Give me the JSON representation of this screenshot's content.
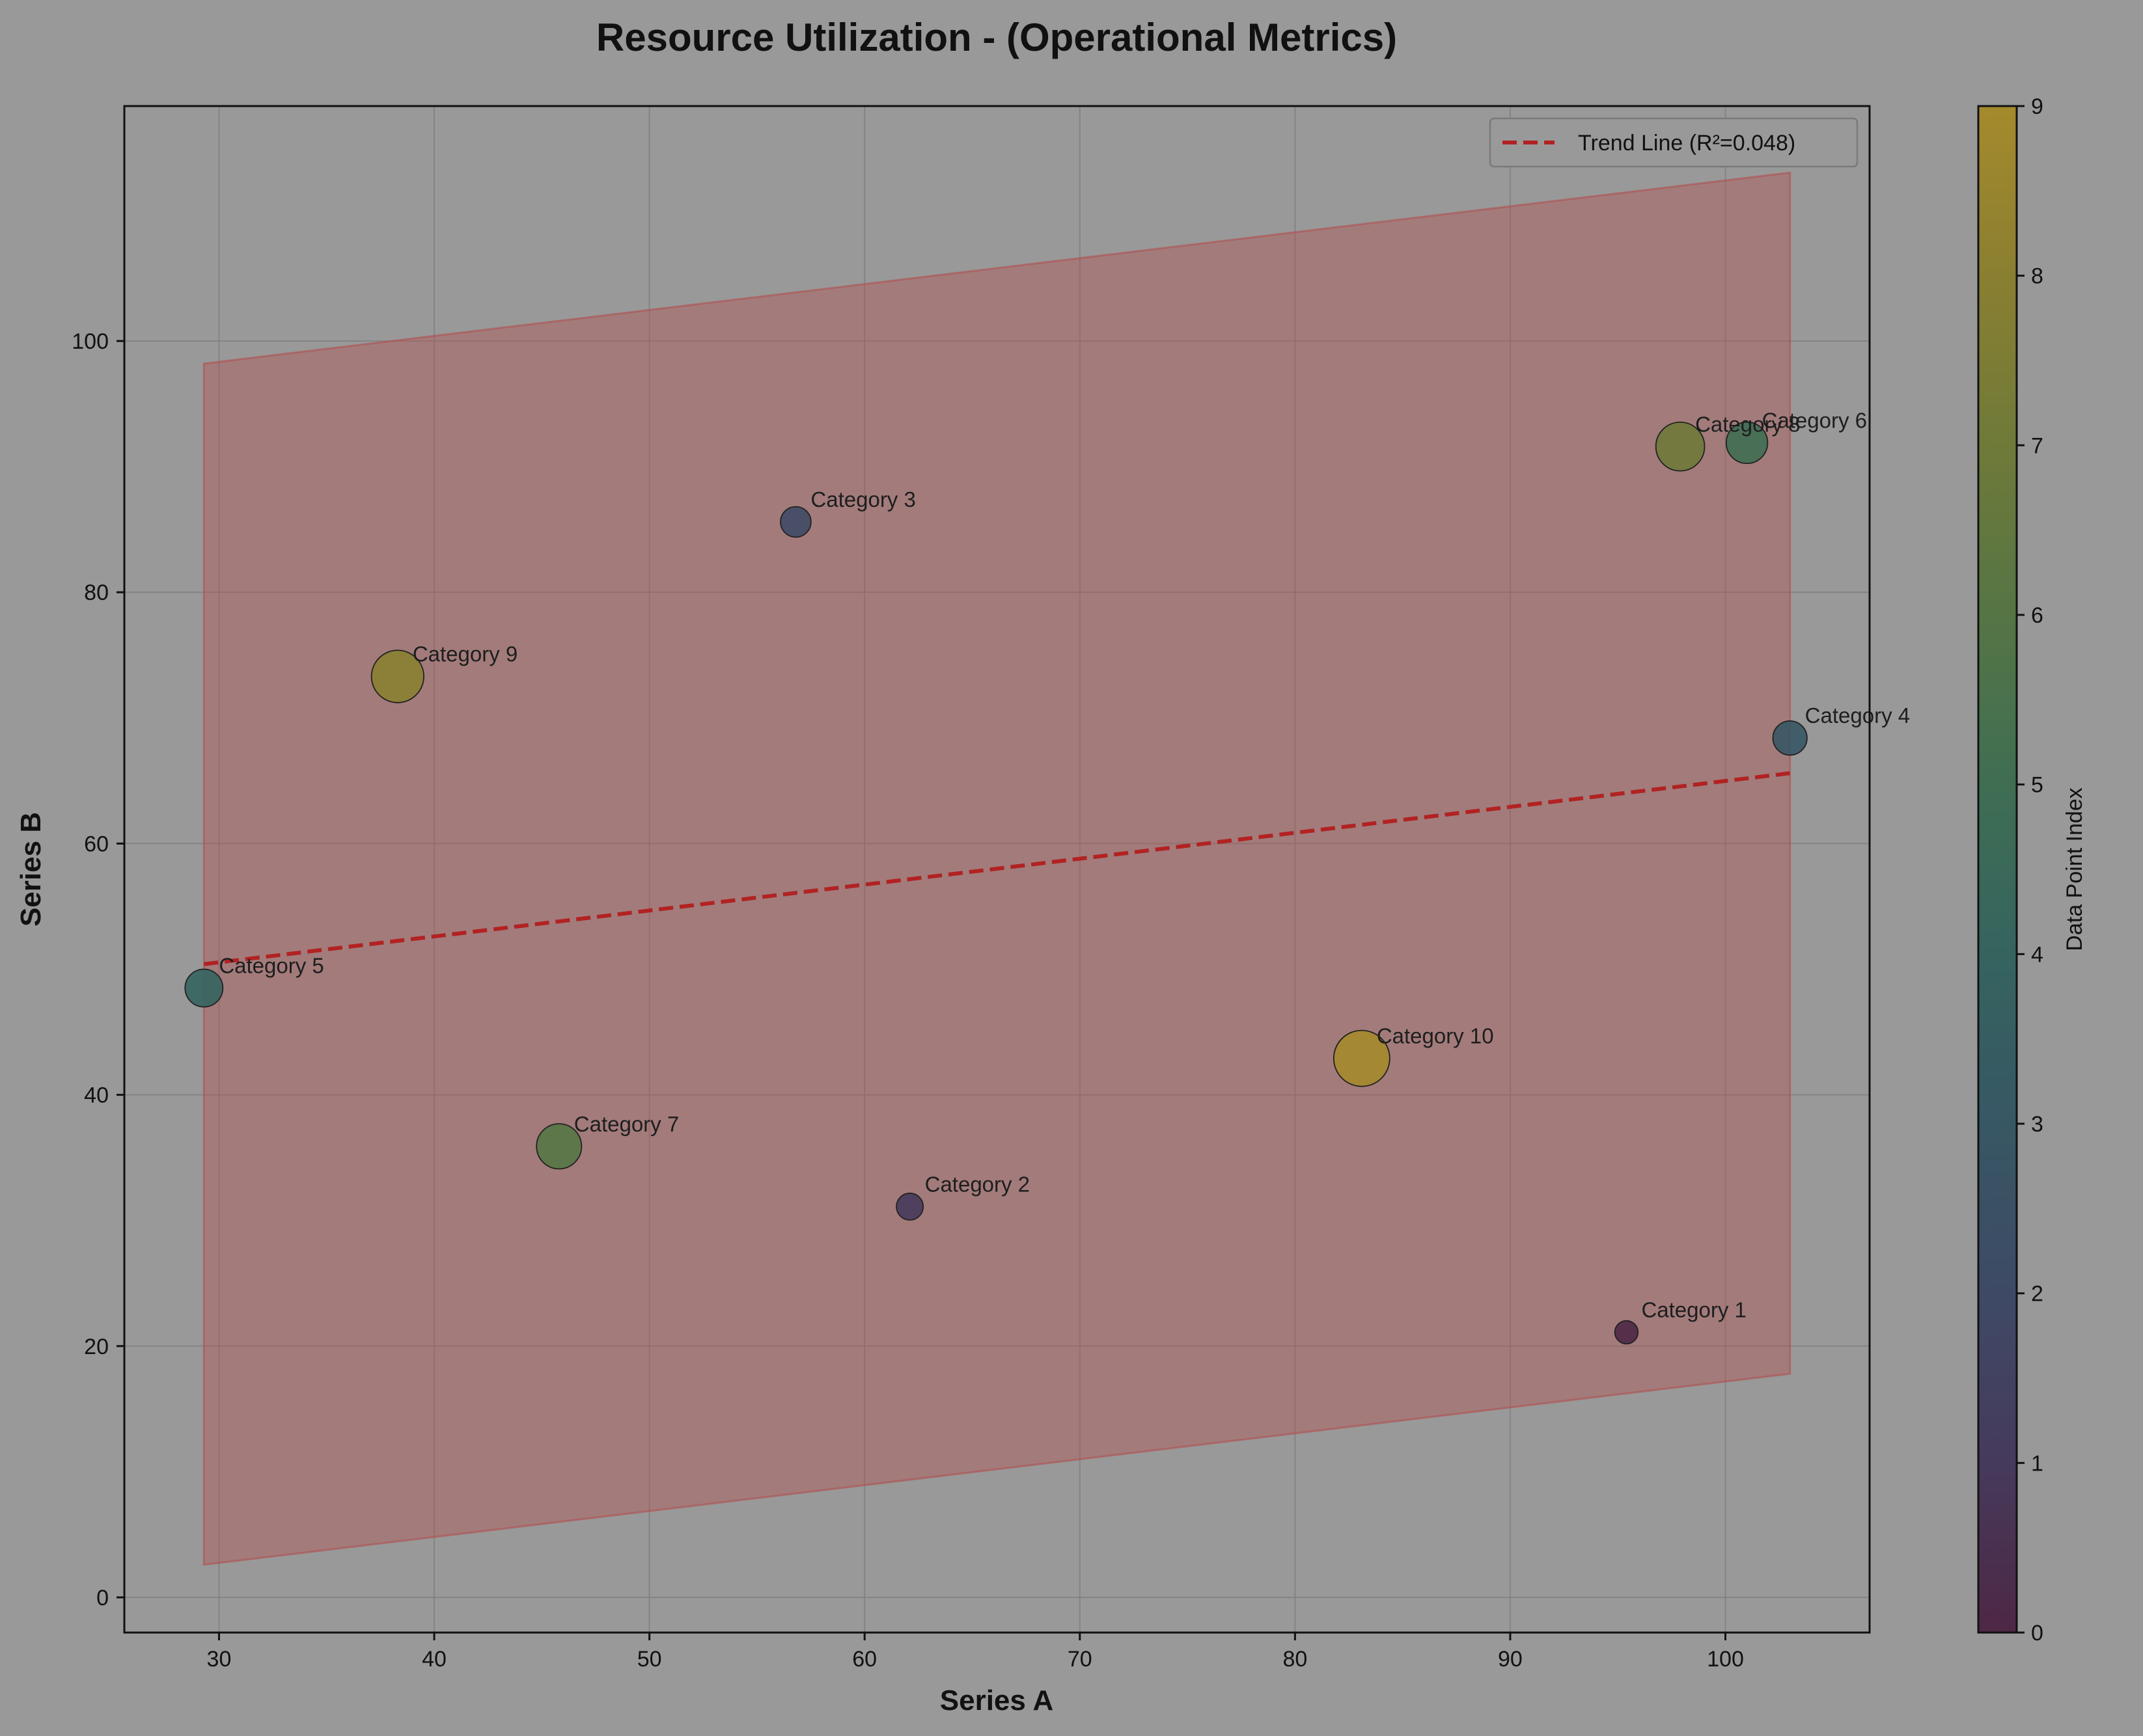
{
  "chart_data": {
    "type": "scatter",
    "title": "Resource Utilization - (Operational Metrics)",
    "xlabel": "Series A",
    "ylabel": "Series B",
    "xlim": [
      25.6,
      106.7
    ],
    "ylim": [
      -2.8,
      118.7
    ],
    "xticks": [
      30,
      40,
      50,
      60,
      70,
      80,
      90,
      100
    ],
    "yticks": [
      0,
      20,
      40,
      60,
      80,
      100
    ],
    "grid": true,
    "legend_position": "top-right",
    "points": [
      {
        "label": "Category 1",
        "x": 95.4,
        "y": 21.1,
        "index": 0,
        "size": 1
      },
      {
        "label": "Category 2",
        "x": 62.1,
        "y": 31.1,
        "index": 1,
        "size": 2
      },
      {
        "label": "Category 3",
        "x": 56.8,
        "y": 85.6,
        "index": 2,
        "size": 3
      },
      {
        "label": "Category 4",
        "x": 103.0,
        "y": 68.4,
        "index": 3,
        "size": 4
      },
      {
        "label": "Category 5",
        "x": 29.3,
        "y": 48.5,
        "index": 4,
        "size": 5
      },
      {
        "label": "Category 6",
        "x": 101.0,
        "y": 91.9,
        "index": 5,
        "size": 6
      },
      {
        "label": "Category 7",
        "x": 45.8,
        "y": 35.9,
        "index": 6,
        "size": 7
      },
      {
        "label": "Category 8",
        "x": 97.9,
        "y": 91.6,
        "index": 7,
        "size": 8
      },
      {
        "label": "Category 9",
        "x": 38.3,
        "y": 73.3,
        "index": 8,
        "size": 9
      },
      {
        "label": "Category 10",
        "x": 83.1,
        "y": 42.9,
        "index": 9,
        "size": 10
      }
    ],
    "trend_line": {
      "label": "Trend Line (R²=0.048)",
      "x": [
        29.3,
        103.0
      ],
      "y": [
        50.4,
        65.6
      ],
      "color": "#b22222"
    },
    "band": {
      "x": [
        29.3,
        103.0
      ],
      "upper": [
        98.2,
        113.4
      ],
      "lower": [
        2.6,
        17.8
      ],
      "color": "#b05050"
    },
    "colorbar": {
      "label": "Data Point Index",
      "min": 0,
      "max": 9,
      "ticks": [
        0,
        1,
        2,
        3,
        4,
        5,
        6,
        7,
        8,
        9
      ],
      "colormap": [
        "#4e2745",
        "#463a5c",
        "#3e4a65",
        "#375764",
        "#35645f",
        "#3f6e53",
        "#557545",
        "#6f7a39",
        "#8a7f31",
        "#a58a2c"
      ]
    }
  }
}
